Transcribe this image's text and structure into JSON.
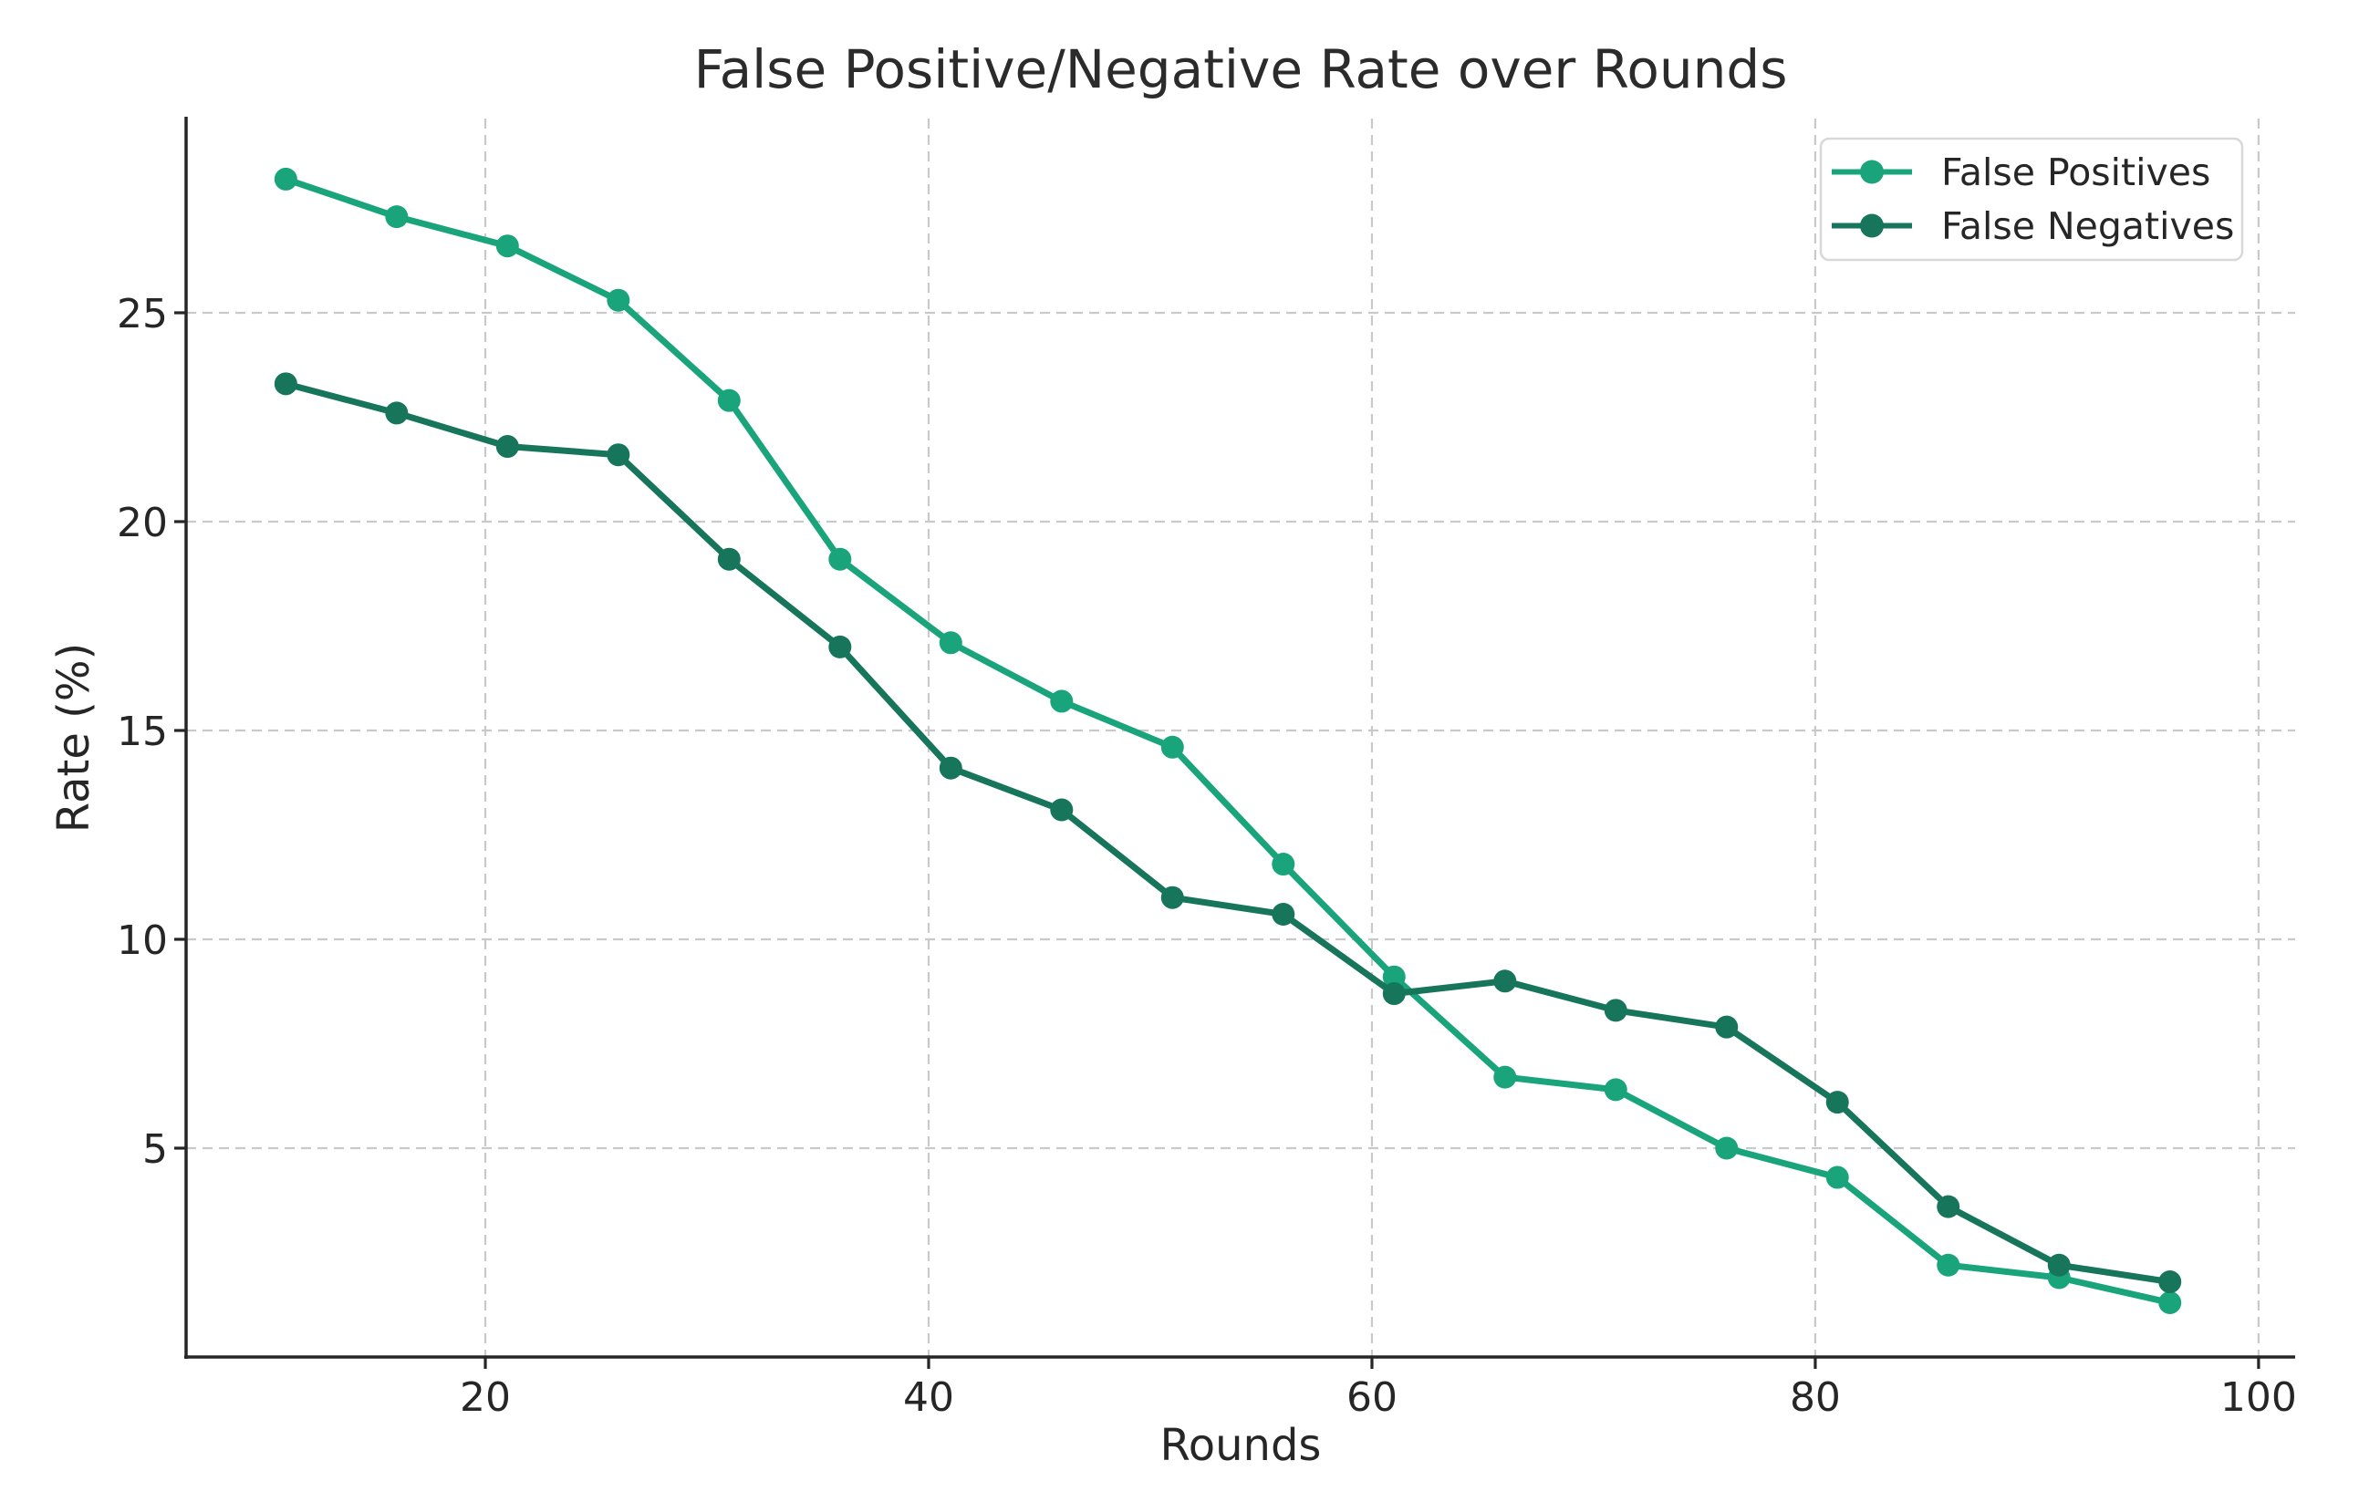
{
  "figure": {
    "background": "#ffffff"
  },
  "chart_data": {
    "type": "line",
    "title": "False Positive/Negative Rate over Rounds",
    "xlabel": "Rounds",
    "ylabel": "Rate (%)",
    "x_ticks": [
      20,
      40,
      60,
      80,
      100
    ],
    "y_ticks": [
      5,
      10,
      15,
      20,
      25
    ],
    "xlim": [
      6.5,
      101.65
    ],
    "ylim": [
      0,
      29.65
    ],
    "grid": true,
    "legend_position": "upper right",
    "x": [
      11,
      16,
      21,
      26,
      31,
      36,
      41,
      46,
      51,
      56,
      61,
      66,
      71,
      76,
      81,
      86,
      91,
      96
    ],
    "series": [
      {
        "name": "False Positives",
        "color": "#19a47c",
        "values": [
          28.2,
          27.3,
          26.6,
          25.3,
          22.9,
          19.1,
          17.1,
          15.7,
          14.6,
          11.8,
          9.1,
          6.7,
          6.4,
          5.0,
          4.3,
          2.2,
          1.9,
          1.3
        ]
      },
      {
        "name": "False Negatives",
        "color": "#16755a",
        "values": [
          23.3,
          22.6,
          21.8,
          21.6,
          19.1,
          17.0,
          14.1,
          13.1,
          11.0,
          10.6,
          8.7,
          9.0,
          8.3,
          7.9,
          6.1,
          3.6,
          2.2,
          1.8
        ]
      }
    ]
  }
}
